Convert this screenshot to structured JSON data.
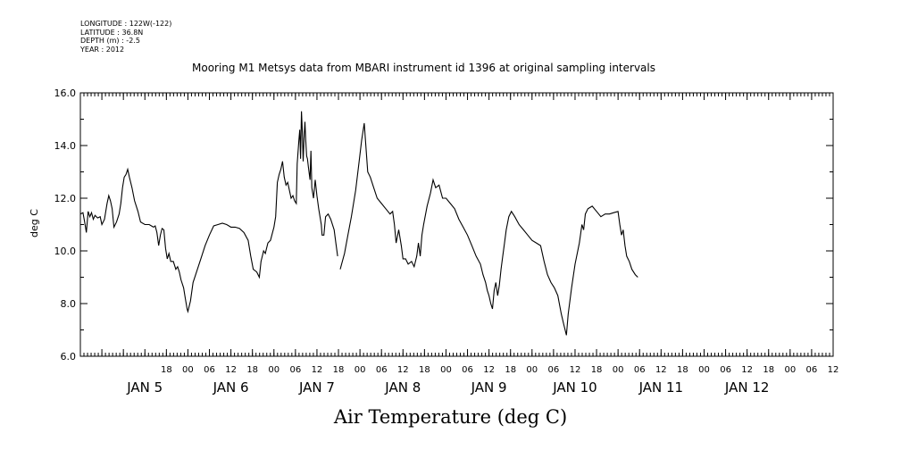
{
  "meta": {
    "longitude": "LONGITUDE : 122W(-122)",
    "latitude": "LATITUDE : 36.8N",
    "depth": "DEPTH (m) : -2.5",
    "year": "YEAR : 2012"
  },
  "chart_data": {
    "type": "line",
    "title": "Mooring M1 Metsys data from MBARI instrument id 1396 at original sampling intervals",
    "xlabel": "Air Temperature (deg C)",
    "ylabel": "deg C",
    "ylim": [
      6.0,
      16.0
    ],
    "yticks": [
      "6.0",
      "8.0",
      "10.0",
      "12.0",
      "14.0",
      "16.0"
    ],
    "xlim": [
      -1.25,
      7.5
    ],
    "xtick_labels": [
      {
        "t": -0.25,
        "label": "18"
      },
      {
        "t": 0,
        "label": "00"
      },
      {
        "t": 0.25,
        "label": "06"
      },
      {
        "t": 0.5,
        "label": "12"
      },
      {
        "t": 0.75,
        "label": "18"
      },
      {
        "t": 1,
        "label": "00"
      },
      {
        "t": 1.25,
        "label": "06"
      },
      {
        "t": 1.5,
        "label": "12"
      },
      {
        "t": 1.75,
        "label": "18"
      },
      {
        "t": 2,
        "label": "00"
      },
      {
        "t": 2.25,
        "label": "06"
      },
      {
        "t": 2.5,
        "label": "12"
      },
      {
        "t": 2.75,
        "label": "18"
      },
      {
        "t": 3,
        "label": "00"
      },
      {
        "t": 3.25,
        "label": "06"
      },
      {
        "t": 3.5,
        "label": "12"
      },
      {
        "t": 3.75,
        "label": "18"
      },
      {
        "t": 4,
        "label": "00"
      },
      {
        "t": 4.25,
        "label": "06"
      },
      {
        "t": 4.5,
        "label": "12"
      },
      {
        "t": 4.75,
        "label": "18"
      },
      {
        "t": 5,
        "label": "00"
      },
      {
        "t": 5.25,
        "label": "06"
      },
      {
        "t": 5.5,
        "label": "12"
      },
      {
        "t": 5.75,
        "label": "18"
      },
      {
        "t": 6,
        "label": "00"
      },
      {
        "t": 6.25,
        "label": "06"
      },
      {
        "t": 6.5,
        "label": "12"
      },
      {
        "t": 6.75,
        "label": "18"
      },
      {
        "t": 7,
        "label": "00"
      },
      {
        "t": 7.25,
        "label": "06"
      },
      {
        "t": 7.5,
        "label": "12"
      }
    ],
    "date_labels": [
      {
        "t": -0.5,
        "label": "JAN  5"
      },
      {
        "t": 0.5,
        "label": "JAN  6"
      },
      {
        "t": 1.5,
        "label": "JAN  7"
      },
      {
        "t": 2.5,
        "label": "JAN  8"
      },
      {
        "t": 3.5,
        "label": "JAN  9"
      },
      {
        "t": 4.5,
        "label": "JAN 10"
      },
      {
        "t": 5.5,
        "label": "JAN 11"
      },
      {
        "t": 6.5,
        "label": "JAN 12"
      }
    ],
    "x_units": "days relative to Jan 5 00:00 (2012)",
    "series": [
      {
        "color": "#000000",
        "segments": [
          [
            [
              -1.25,
              11.4
            ],
            [
              -1.22,
              11.45
            ],
            [
              -1.2,
              11.1
            ],
            [
              -1.18,
              10.7
            ],
            [
              -1.16,
              11.5
            ],
            [
              -1.14,
              11.3
            ],
            [
              -1.12,
              11.45
            ],
            [
              -1.1,
              11.2
            ],
            [
              -1.08,
              11.35
            ],
            [
              -1.05,
              11.25
            ],
            [
              -1.02,
              11.3
            ],
            [
              -1.0,
              11.0
            ],
            [
              -0.97,
              11.2
            ],
            [
              -0.94,
              11.8
            ],
            [
              -0.92,
              12.1
            ],
            [
              -0.9,
              11.9
            ],
            [
              -0.88,
              11.6
            ],
            [
              -0.86,
              10.9
            ],
            [
              -0.83,
              11.1
            ],
            [
              -0.8,
              11.4
            ],
            [
              -0.78,
              11.8
            ],
            [
              -0.76,
              12.4
            ],
            [
              -0.74,
              12.8
            ],
            [
              -0.72,
              12.9
            ],
            [
              -0.7,
              13.1
            ],
            [
              -0.68,
              12.8
            ],
            [
              -0.65,
              12.4
            ],
            [
              -0.62,
              11.9
            ],
            [
              -0.58,
              11.5
            ],
            [
              -0.55,
              11.1
            ],
            [
              -0.5,
              11.0
            ],
            [
              -0.45,
              11.0
            ],
            [
              -0.4,
              10.9
            ],
            [
              -0.38,
              10.95
            ],
            [
              -0.36,
              10.7
            ],
            [
              -0.34,
              10.2
            ],
            [
              -0.32,
              10.6
            ],
            [
              -0.3,
              10.85
            ],
            [
              -0.28,
              10.8
            ],
            [
              -0.26,
              10.1
            ],
            [
              -0.24,
              9.7
            ],
            [
              -0.22,
              9.9
            ],
            [
              -0.2,
              9.6
            ],
            [
              -0.17,
              9.6
            ],
            [
              -0.14,
              9.3
            ],
            [
              -0.12,
              9.4
            ],
            [
              -0.1,
              9.2
            ],
            [
              -0.08,
              8.9
            ],
            [
              -0.05,
              8.6
            ],
            [
              -0.03,
              8.2
            ],
            [
              -0.01,
              7.8
            ],
            [
              0.0,
              7.7
            ],
            [
              0.03,
              8.1
            ],
            [
              0.06,
              8.8
            ],
            [
              0.1,
              9.2
            ],
            [
              0.15,
              9.7
            ],
            [
              0.2,
              10.2
            ],
            [
              0.25,
              10.6
            ],
            [
              0.3,
              10.95
            ],
            [
              0.35,
              11.0
            ],
            [
              0.4,
              11.05
            ],
            [
              0.45,
              11.0
            ],
            [
              0.5,
              10.9
            ],
            [
              0.55,
              10.9
            ],
            [
              0.6,
              10.85
            ],
            [
              0.65,
              10.7
            ],
            [
              0.7,
              10.4
            ],
            [
              0.73,
              9.8
            ],
            [
              0.76,
              9.3
            ],
            [
              0.8,
              9.2
            ],
            [
              0.83,
              9.0
            ],
            [
              0.85,
              9.6
            ],
            [
              0.88,
              10.0
            ],
            [
              0.9,
              9.9
            ],
            [
              0.93,
              10.3
            ],
            [
              0.96,
              10.4
            ],
            [
              1.0,
              10.9
            ],
            [
              1.02,
              11.3
            ],
            [
              1.04,
              12.6
            ],
            [
              1.06,
              12.9
            ],
            [
              1.08,
              13.1
            ],
            [
              1.1,
              13.4
            ],
            [
              1.12,
              12.8
            ],
            [
              1.14,
              12.5
            ],
            [
              1.16,
              12.6
            ],
            [
              1.18,
              12.3
            ],
            [
              1.2,
              12.0
            ],
            [
              1.22,
              12.1
            ],
            [
              1.24,
              11.9
            ],
            [
              1.26,
              11.8
            ],
            [
              1.27,
              13.3
            ],
            [
              1.29,
              14.2
            ],
            [
              1.3,
              14.6
            ],
            [
              1.31,
              13.5
            ],
            [
              1.32,
              15.3
            ],
            [
              1.33,
              14.5
            ],
            [
              1.34,
              13.4
            ],
            [
              1.35,
              14.3
            ],
            [
              1.36,
              14.9
            ],
            [
              1.37,
              14.2
            ],
            [
              1.38,
              13.6
            ],
            [
              1.39,
              13.5
            ],
            [
              1.4,
              13.2
            ],
            [
              1.42,
              12.7
            ],
            [
              1.43,
              13.8
            ],
            [
              1.44,
              12.4
            ],
            [
              1.46,
              12.0
            ],
            [
              1.48,
              12.7
            ],
            [
              1.5,
              12.1
            ],
            [
              1.52,
              11.6
            ],
            [
              1.55,
              11.0
            ],
            [
              1.56,
              10.6
            ],
            [
              1.58,
              10.6
            ],
            [
              1.6,
              11.3
            ],
            [
              1.63,
              11.4
            ],
            [
              1.66,
              11.2
            ],
            [
              1.7,
              10.8
            ],
            [
              1.72,
              10.3
            ],
            [
              1.74,
              9.8
            ]
          ],
          [
            [
              1.77,
              9.3
            ],
            [
              1.82,
              9.9
            ],
            [
              1.86,
              10.6
            ],
            [
              1.9,
              11.3
            ],
            [
              1.95,
              12.3
            ],
            [
              1.99,
              13.4
            ],
            [
              2.02,
              14.2
            ],
            [
              2.05,
              14.85
            ],
            [
              2.07,
              13.9
            ],
            [
              2.09,
              13.0
            ],
            [
              2.12,
              12.8
            ],
            [
              2.16,
              12.4
            ],
            [
              2.2,
              12.0
            ],
            [
              2.25,
              11.8
            ],
            [
              2.3,
              11.6
            ],
            [
              2.35,
              11.4
            ],
            [
              2.38,
              11.5
            ],
            [
              2.4,
              11.0
            ],
            [
              2.42,
              10.3
            ],
            [
              2.45,
              10.8
            ],
            [
              2.48,
              10.2
            ],
            [
              2.5,
              9.7
            ],
            [
              2.53,
              9.7
            ],
            [
              2.56,
              9.5
            ],
            [
              2.6,
              9.6
            ],
            [
              2.63,
              9.4
            ],
            [
              2.66,
              9.8
            ],
            [
              2.68,
              10.3
            ],
            [
              2.7,
              9.8
            ],
            [
              2.72,
              10.6
            ],
            [
              2.74,
              11.0
            ],
            [
              2.78,
              11.7
            ],
            [
              2.82,
              12.2
            ],
            [
              2.85,
              12.7
            ],
            [
              2.88,
              12.4
            ],
            [
              2.92,
              12.5
            ],
            [
              2.96,
              12.0
            ],
            [
              3.0,
              12.0
            ],
            [
              3.05,
              11.8
            ],
            [
              3.1,
              11.6
            ],
            [
              3.15,
              11.2
            ],
            [
              3.2,
              10.9
            ],
            [
              3.25,
              10.6
            ],
            [
              3.3,
              10.2
            ],
            [
              3.35,
              9.8
            ],
            [
              3.4,
              9.5
            ],
            [
              3.43,
              9.1
            ],
            [
              3.46,
              8.8
            ],
            [
              3.48,
              8.5
            ],
            [
              3.5,
              8.3
            ],
            [
              3.52,
              8.0
            ],
            [
              3.54,
              7.8
            ],
            [
              3.56,
              8.5
            ],
            [
              3.58,
              8.8
            ],
            [
              3.6,
              8.3
            ],
            [
              3.62,
              8.7
            ],
            [
              3.64,
              9.3
            ],
            [
              3.66,
              9.8
            ],
            [
              3.68,
              10.3
            ],
            [
              3.7,
              10.8
            ],
            [
              3.73,
              11.3
            ],
            [
              3.76,
              11.5
            ],
            [
              3.8,
              11.3
            ],
            [
              3.85,
              11.0
            ],
            [
              3.9,
              10.8
            ],
            [
              3.95,
              10.6
            ],
            [
              4.0,
              10.4
            ],
            [
              4.05,
              10.3
            ],
            [
              4.1,
              10.2
            ],
            [
              4.14,
              9.6
            ],
            [
              4.18,
              9.1
            ],
            [
              4.22,
              8.8
            ],
            [
              4.26,
              8.6
            ],
            [
              4.3,
              8.3
            ],
            [
              4.34,
              7.6
            ],
            [
              4.37,
              7.2
            ],
            [
              4.4,
              6.8
            ],
            [
              4.42,
              7.6
            ],
            [
              4.46,
              8.6
            ],
            [
              4.5,
              9.5
            ],
            [
              4.55,
              10.3
            ],
            [
              4.58,
              11.0
            ],
            [
              4.6,
              10.8
            ],
            [
              4.62,
              11.4
            ],
            [
              4.65,
              11.6
            ],
            [
              4.7,
              11.7
            ],
            [
              4.75,
              11.5
            ],
            [
              4.8,
              11.3
            ],
            [
              4.85,
              11.4
            ],
            [
              4.9,
              11.4
            ],
            [
              4.95,
              11.45
            ],
            [
              5.0,
              11.5
            ],
            [
              5.02,
              11.0
            ],
            [
              5.04,
              10.6
            ],
            [
              5.06,
              10.8
            ],
            [
              5.08,
              10.2
            ],
            [
              5.1,
              9.8
            ],
            [
              5.13,
              9.6
            ],
            [
              5.16,
              9.3
            ],
            [
              5.2,
              9.1
            ],
            [
              5.23,
              9.0
            ]
          ]
        ]
      }
    ]
  }
}
